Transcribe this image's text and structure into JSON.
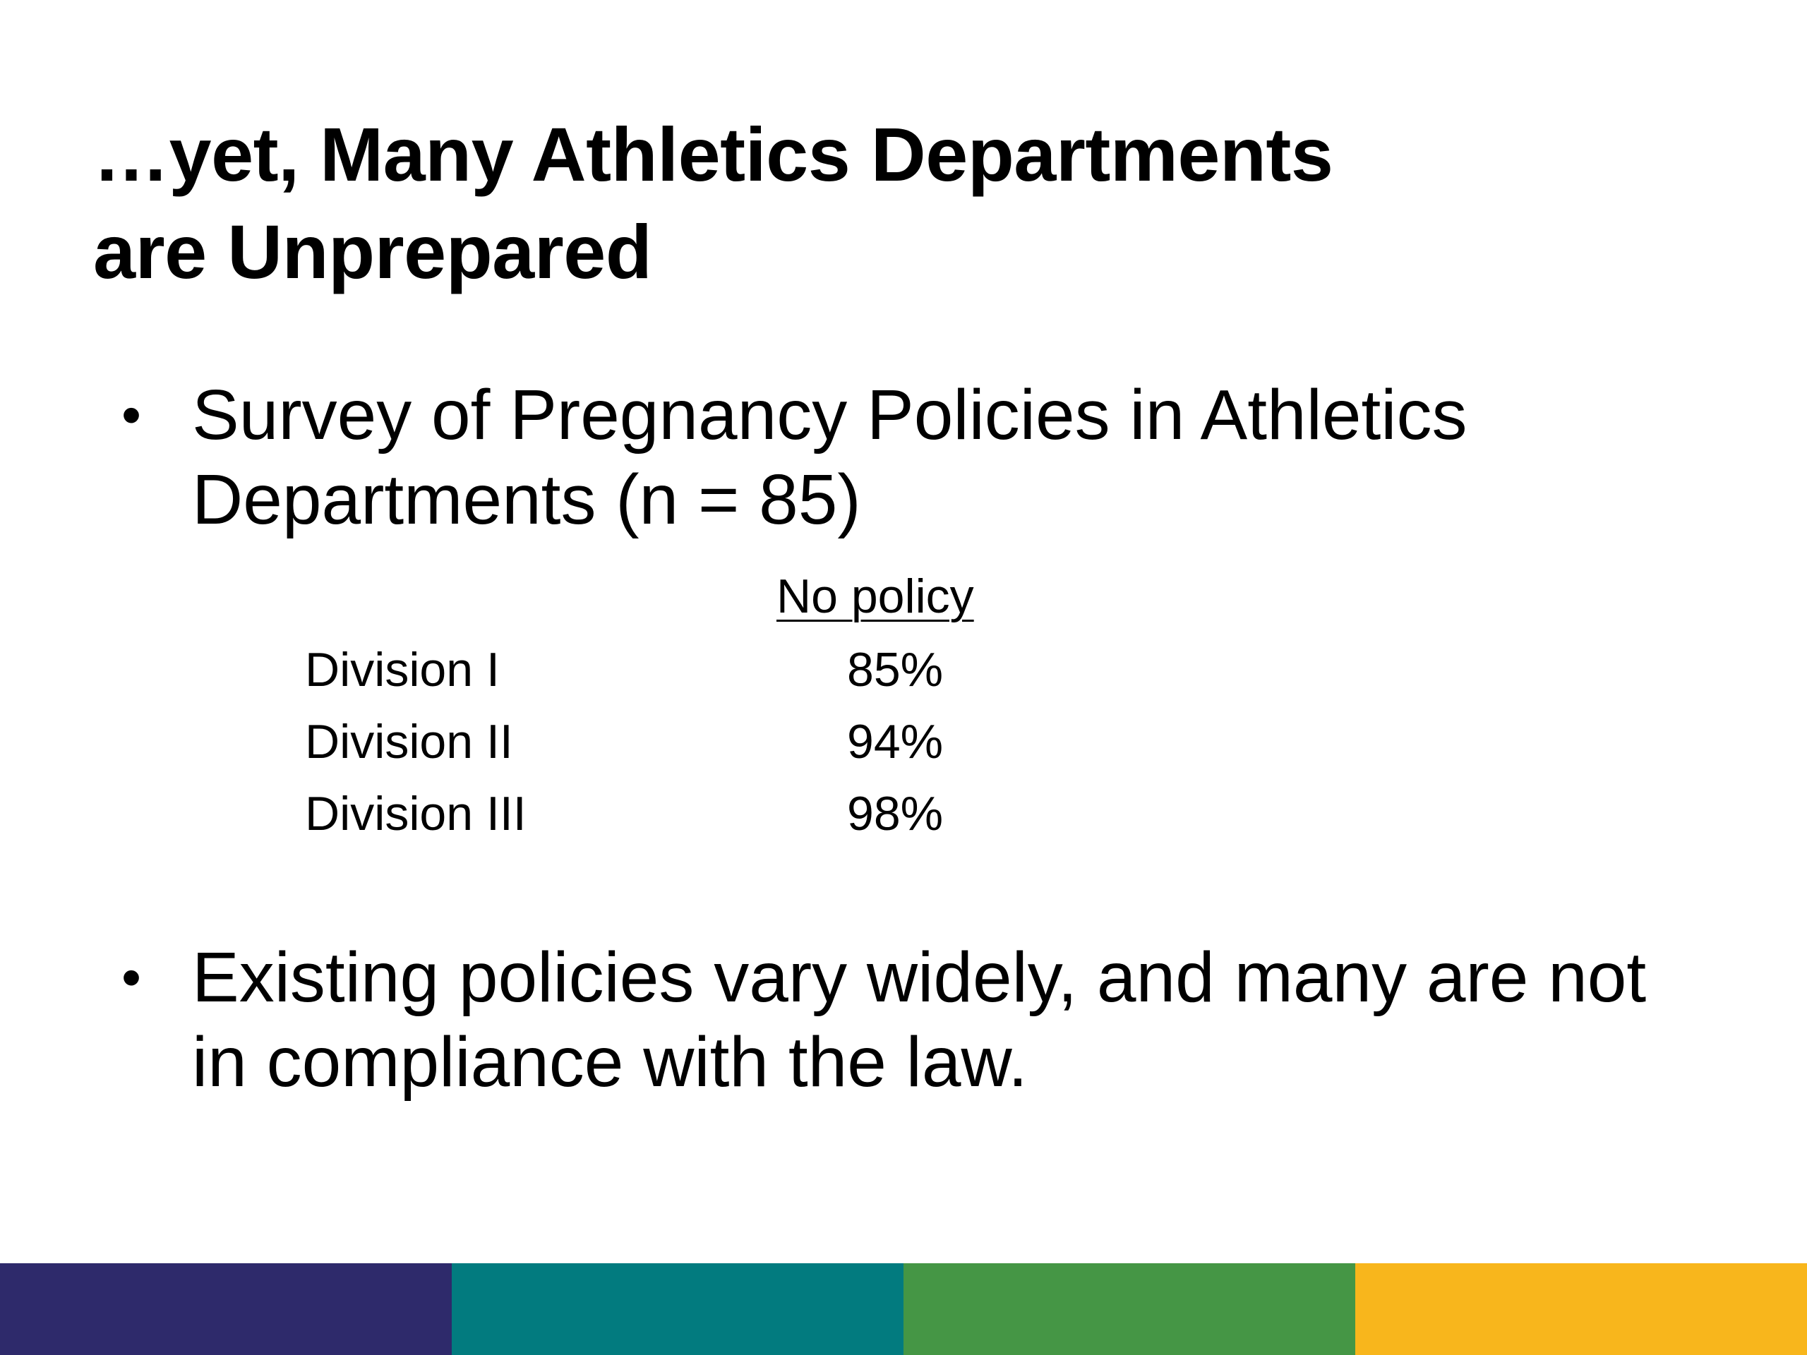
{
  "title": {
    "line1": "…yet, Many Athletics Departments",
    "line2": "are Unprepared"
  },
  "bullets": [
    {
      "lines": [
        "Survey of Pregnancy Policies in Athletics",
        "Departments  (n = 85)"
      ]
    },
    {
      "lines": [
        "Existing policies vary widely, and many are not",
        "in compliance with the law."
      ]
    }
  ],
  "table": {
    "column_header": "No policy",
    "rows": [
      {
        "label": "Division I",
        "value": "85%"
      },
      {
        "label": "Division II",
        "value": "94%"
      },
      {
        "label": "Division III",
        "value": "98%"
      }
    ]
  },
  "footer_colors": [
    "#2e2a6b",
    "#027b7f",
    "#459645",
    "#f8b61c"
  ]
}
